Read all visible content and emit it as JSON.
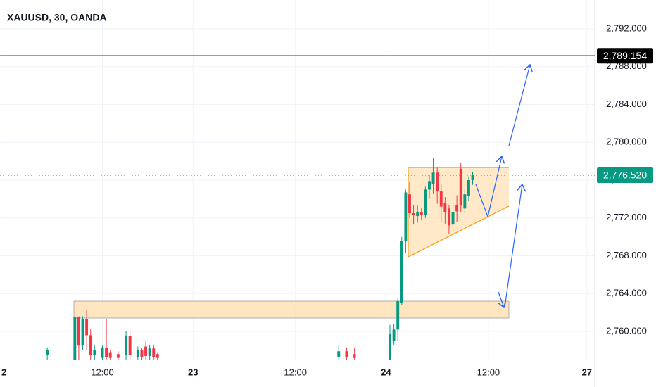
{
  "chart_data": {
    "type": "candlestick",
    "title": "XAUUSD, 30, OANDA",
    "x": [
      12,
      19,
      20,
      21,
      22,
      23,
      24,
      26,
      27,
      28,
      30,
      32,
      33,
      35,
      36,
      37,
      38,
      39,
      40,
      86,
      88,
      90,
      99,
      100,
      101,
      102,
      103,
      104,
      105,
      106,
      107,
      108,
      109,
      110,
      111,
      112,
      113,
      114,
      115,
      116,
      117,
      118,
      119,
      120
    ],
    "open": [
      2757.5,
      2757,
      2761.5,
      2758.5,
      2761.3,
      2759.6,
      2757.5,
      2757.2,
      2758.3,
      2757.8,
      2757.6,
      2757.5,
      2759.5,
      2757.3,
      2758,
      2758.4,
      2757.4,
      2758.2,
      2757.6,
      2757.3,
      2757.9,
      2757.6,
      2757,
      2759,
      2760.2,
      2763,
      2769.6,
      2774.5,
      2772.5,
      2772.2,
      2772.6,
      2772.3,
      2775,
      2775.6,
      2776.8,
      2774.8,
      2773.6,
      2773,
      2771.3,
      2773.4,
      2777.2,
      2773,
      2774.3,
      2776
    ],
    "high": [
      2758.3,
      2761.5,
      2761.6,
      2761.6,
      2762.3,
      2760.2,
      2758.5,
      2758.5,
      2761.3,
      2758,
      2757.9,
      2760,
      2760,
      2758.4,
      2758.2,
      2759,
      2758.6,
      2758.6,
      2757.8,
      2758.6,
      2758.3,
      2758.2,
      2760.7,
      2760.8,
      2763.5,
      2770,
      2775,
      2775.8,
      2773.4,
      2773.3,
      2773,
      2775.3,
      2776.6,
      2778.3,
      2777.3,
      2775.6,
      2774.2,
      2773.4,
      2773.5,
      2774.4,
      2777.8,
      2775,
      2776.4,
      2776.9
    ],
    "low": [
      2757,
      2757,
      2757,
      2758,
      2758,
      2757,
      2757,
      2757,
      2757,
      2757,
      2757,
      2757,
      2757,
      2757,
      2757,
      2757,
      2757,
      2757,
      2757,
      2757,
      2757,
      2757,
      2757,
      2758.6,
      2759,
      2762.8,
      2768.3,
      2772,
      2771.3,
      2771.5,
      2771.8,
      2772,
      2774,
      2774.6,
      2773.5,
      2771.6,
      2771.4,
      2770.3,
      2770.4,
      2771.6,
      2772.6,
      2772.5,
      2773.8,
      2775.5
    ],
    "close": [
      2758,
      2761.5,
      2758.5,
      2761.3,
      2759.6,
      2757.5,
      2758,
      2758.3,
      2757.3,
      2757.2,
      2757.2,
      2759.5,
      2757.5,
      2758,
      2757.3,
      2757.4,
      2758.2,
      2757.3,
      2757.2,
      2757.9,
      2757.3,
      2757.2,
      2759.7,
      2760.2,
      2763.2,
      2769.6,
      2774.7,
      2772.5,
      2772.3,
      2772.6,
      2772.3,
      2775,
      2775.9,
      2776.8,
      2774.8,
      2773.2,
      2772.6,
      2771.2,
      2772.6,
      2772.7,
      2773.3,
      2774.5,
      2776,
      2776.5
    ],
    "up_color": "#089981",
    "down_color": "#f23645",
    "xlim": [
      0,
      151
    ],
    "xticks": [
      {
        "value": 1,
        "label": "2"
      },
      {
        "value": 26,
        "label": "12:00"
      },
      {
        "value": 49,
        "label": "23"
      },
      {
        "value": 75,
        "label": "12:00"
      },
      {
        "value": 98,
        "label": "24"
      },
      {
        "value": 124,
        "label": "12:00"
      },
      {
        "value": 149,
        "label": "27"
      }
    ],
    "ylim": [
      2756.95,
      2795.05
    ],
    "yticks": [
      {
        "value": 2760,
        "label": "2,760.000"
      },
      {
        "value": 2764,
        "label": "2,764.000"
      },
      {
        "value": 2768,
        "label": "2,768.000"
      },
      {
        "value": 2772,
        "label": "2,772.000"
      },
      {
        "value": 2776,
        "label": "2,776.000"
      },
      {
        "value": 2780,
        "label": "2,780.000"
      },
      {
        "value": 2784,
        "label": "2,784.000"
      },
      {
        "value": 2788,
        "label": "2,788.000"
      },
      {
        "value": 2792,
        "label": "2,792.000"
      }
    ],
    "grid": true,
    "hline": {
      "value": 2789.154,
      "label": "2,789.154",
      "color": "#000000"
    },
    "last_price": {
      "value": 2776.52,
      "label": "2,776.520",
      "color": "#089981"
    }
  }
}
